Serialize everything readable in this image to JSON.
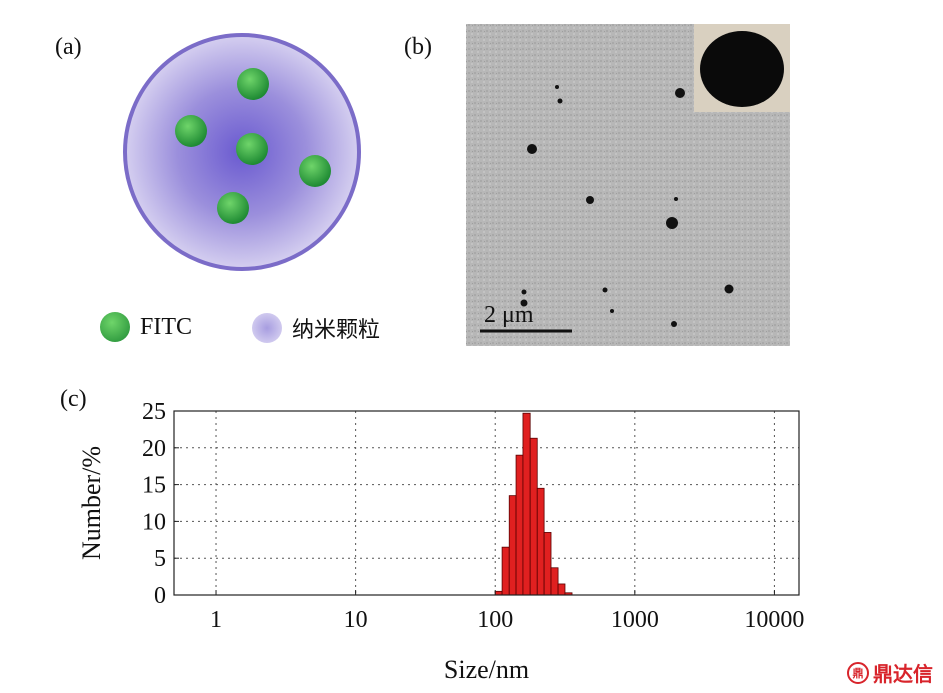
{
  "panel_labels": {
    "a": "(a)",
    "b": "(b)",
    "c": "(c)"
  },
  "legend": {
    "fitc_label": "FITC",
    "nano_label": "纳米颗粒",
    "fitc_color": "#2ea043",
    "nano_color": "#b8b0e0"
  },
  "scale_bar": "2 μm",
  "watermark": {
    "text": "鼎达信",
    "logo": "鼎",
    "color": "#d8242b"
  },
  "chart_data": {
    "type": "bar",
    "xscale": "log",
    "xlabel": "Size/nm",
    "ylabel": "Number/%",
    "xlim": [
      0.5,
      15000
    ],
    "ylim": [
      0,
      25
    ],
    "xticks": [
      1,
      10,
      100,
      1000,
      10000
    ],
    "xtick_labels": [
      "1",
      "10",
      "100",
      "1000",
      "10000"
    ],
    "yticks": [
      0,
      5,
      10,
      15,
      20,
      25
    ],
    "ytick_labels": [
      "0",
      "5",
      "10",
      "15",
      "20",
      "25"
    ],
    "grid": true,
    "bar_color": "#e02020",
    "bins": [
      {
        "from": 100,
        "to": 112,
        "value": 0.5
      },
      {
        "from": 112,
        "to": 126,
        "value": 6.5
      },
      {
        "from": 126,
        "to": 141,
        "value": 13.5
      },
      {
        "from": 141,
        "to": 158,
        "value": 19
      },
      {
        "from": 158,
        "to": 178,
        "value": 24.7
      },
      {
        "from": 178,
        "to": 200,
        "value": 21.3
      },
      {
        "from": 200,
        "to": 224,
        "value": 14.5
      },
      {
        "from": 224,
        "to": 251,
        "value": 8.5
      },
      {
        "from": 251,
        "to": 282,
        "value": 3.7
      },
      {
        "from": 282,
        "to": 316,
        "value": 1.5
      },
      {
        "from": 316,
        "to": 355,
        "value": 0.3
      }
    ]
  }
}
